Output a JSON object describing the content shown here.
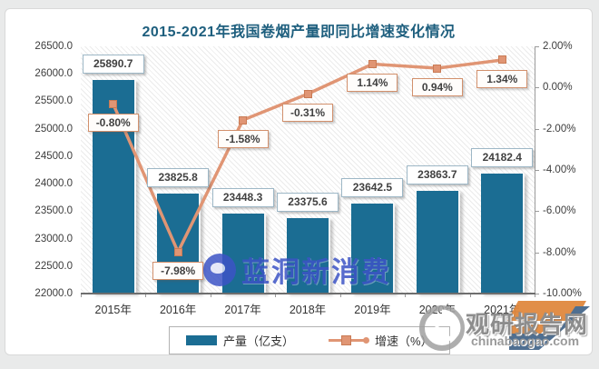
{
  "title": "2015-2021年我国卷烟产量即同比增速变化情况",
  "chart_data": {
    "type": "bar",
    "subtype": "bar-line-combo",
    "title": "2015-2021年我国卷烟产量即同比增速变化情况",
    "categories": [
      "2015年",
      "2016年",
      "2017年",
      "2018年",
      "2019年",
      "2020年",
      "2021年"
    ],
    "series": [
      {
        "name": "产量（亿支）",
        "type": "bar",
        "axis": "left",
        "values": [
          25890.7,
          23825.8,
          23448.3,
          23375.6,
          23642.5,
          23863.7,
          24182.4
        ],
        "labels": [
          "25890.7",
          "23825.8",
          "23448.3",
          "23375.6",
          "23642.5",
          "23863.7",
          "24182.4"
        ],
        "color": "#1b6d93"
      },
      {
        "name": "增速（%）",
        "type": "line",
        "axis": "right",
        "values": [
          -0.8,
          -7.98,
          -1.58,
          -0.31,
          1.14,
          0.94,
          1.34
        ],
        "labels": [
          "-0.80%",
          "-7.98%",
          "-1.58%",
          "-0.31%",
          "1.14%",
          "0.94%",
          "1.34%"
        ],
        "color": "#e09574"
      }
    ],
    "left_axis": {
      "ticks": [
        "26500.0",
        "26000.0",
        "25500.0",
        "25000.0",
        "24500.0",
        "24000.0",
        "23500.0",
        "23000.0",
        "22500.0",
        "22000.0"
      ],
      "min": 22000,
      "max": 26500
    },
    "right_axis": {
      "ticks": [
        "2.00%",
        "0.00%",
        "-2.00%",
        "-4.00%",
        "-6.00%",
        "-8.00%",
        "-10.00%"
      ],
      "min": -10,
      "max": 2
    },
    "grid": false,
    "legend_position": "bottom"
  },
  "legend": [
    {
      "label": "产量（亿支）"
    },
    {
      "label": "增速（%）"
    }
  ],
  "watermarks": {
    "center_text": "蓝洞新消费",
    "bottom_right_name": "观研报告网",
    "bottom_right_url": "chinabaogao.com"
  },
  "colors": {
    "bar": "#1b6d93",
    "line": "#e09574",
    "title": "#1e5f7e"
  }
}
